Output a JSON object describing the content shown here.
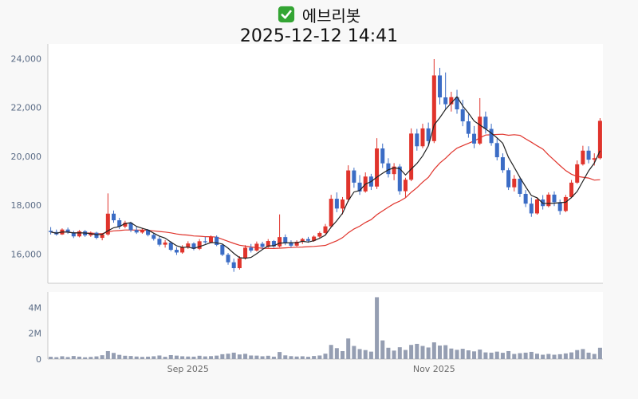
{
  "header": {
    "title": "에브리봇",
    "datetime": "2025-12-12 14:41"
  },
  "colors": {
    "up": "#e0342c",
    "down": "#3b6cc5",
    "ma_fast": "#222222",
    "ma_slow": "#e0342c",
    "volume_bar": "#959eb2",
    "axis_label": "#5a6b85",
    "axis_line": "#c9c9c9",
    "x_label": "#6b6b6b",
    "plot_bg": "#ffffff",
    "checkbox_green": "#34a534"
  },
  "chart_data": {
    "type": "candlestick+volume",
    "title": "에브리봇",
    "as_of": "2025-12-12 14:41",
    "price_axis": {
      "range": [
        14800,
        24600
      ],
      "ticks": [
        {
          "label": "24,000",
          "value": 24000
        },
        {
          "label": "22,000",
          "value": 22000
        },
        {
          "label": "20,000",
          "value": 20000
        },
        {
          "label": "18,000",
          "value": 18000
        },
        {
          "label": "16,000",
          "value": 16000
        }
      ]
    },
    "volume_axis": {
      "unit": "M",
      "range": [
        0,
        5.2
      ],
      "ticks": [
        {
          "label": "4M",
          "value": 4
        },
        {
          "label": "2M",
          "value": 2
        },
        {
          "label": "0",
          "value": 0
        }
      ]
    },
    "x_ticks": [
      {
        "date": "2025-09-01",
        "label": "Sep 2025"
      },
      {
        "date": "2025-11-03",
        "label": "Nov 2025"
      }
    ],
    "ma_fast_window": 5,
    "ma_slow_window": 20,
    "columns": [
      "date",
      "open",
      "high",
      "low",
      "close",
      "volume_m"
    ],
    "candles": [
      [
        "2025-07-28",
        16950,
        17100,
        16800,
        16900,
        0.18
      ],
      [
        "2025-07-29",
        16900,
        17000,
        16750,
        16800,
        0.15
      ],
      [
        "2025-07-30",
        16800,
        17050,
        16780,
        17000,
        0.22
      ],
      [
        "2025-07-31",
        17000,
        17080,
        16820,
        16880,
        0.16
      ],
      [
        "2025-08-01",
        16880,
        16950,
        16650,
        16720,
        0.24
      ],
      [
        "2025-08-04",
        16720,
        16980,
        16680,
        16930,
        0.19
      ],
      [
        "2025-08-05",
        16930,
        16980,
        16700,
        16760,
        0.14
      ],
      [
        "2025-08-06",
        16760,
        16920,
        16700,
        16870,
        0.17
      ],
      [
        "2025-08-07",
        16870,
        16910,
        16600,
        16660,
        0.21
      ],
      [
        "2025-08-08",
        16660,
        16850,
        16560,
        16800,
        0.3
      ],
      [
        "2025-08-11",
        16800,
        18480,
        16750,
        17650,
        0.62
      ],
      [
        "2025-08-12",
        17650,
        17780,
        17280,
        17380,
        0.48
      ],
      [
        "2025-08-13",
        17380,
        17480,
        17020,
        17120,
        0.33
      ],
      [
        "2025-08-14",
        17120,
        17360,
        17050,
        17280,
        0.26
      ],
      [
        "2025-08-18",
        17280,
        17320,
        16900,
        16980,
        0.24
      ],
      [
        "2025-08-19",
        16980,
        17120,
        16820,
        16880,
        0.2
      ],
      [
        "2025-08-20",
        16880,
        17060,
        16830,
        16990,
        0.17
      ],
      [
        "2025-08-21",
        16990,
        17020,
        16720,
        16780,
        0.19
      ],
      [
        "2025-08-22",
        16780,
        16870,
        16550,
        16620,
        0.22
      ],
      [
        "2025-08-25",
        16620,
        16720,
        16310,
        16380,
        0.28
      ],
      [
        "2025-08-26",
        16380,
        16570,
        16260,
        16470,
        0.18
      ],
      [
        "2025-08-27",
        16470,
        16520,
        16110,
        16170,
        0.31
      ],
      [
        "2025-08-28",
        16170,
        16280,
        15960,
        16060,
        0.27
      ],
      [
        "2025-08-29",
        16060,
        16360,
        16010,
        16270,
        0.22
      ],
      [
        "2025-09-01",
        16270,
        16520,
        16210,
        16430,
        0.2
      ],
      [
        "2025-09-02",
        16430,
        16480,
        16150,
        16210,
        0.19
      ],
      [
        "2025-09-03",
        16210,
        16610,
        16160,
        16520,
        0.26
      ],
      [
        "2025-09-04",
        16520,
        16700,
        16420,
        16480,
        0.21
      ],
      [
        "2025-09-05",
        16480,
        16760,
        16440,
        16700,
        0.23
      ],
      [
        "2025-09-08",
        16700,
        16760,
        16320,
        16370,
        0.27
      ],
      [
        "2025-09-09",
        16370,
        16420,
        15910,
        15970,
        0.38
      ],
      [
        "2025-09-10",
        15970,
        16040,
        15560,
        15660,
        0.42
      ],
      [
        "2025-09-11",
        15660,
        15810,
        15270,
        15420,
        0.5
      ],
      [
        "2025-09-12",
        15420,
        15910,
        15360,
        15820,
        0.36
      ],
      [
        "2025-09-15",
        15820,
        16360,
        15770,
        16260,
        0.41
      ],
      [
        "2025-09-16",
        16260,
        16410,
        16060,
        16140,
        0.28
      ],
      [
        "2025-09-17",
        16140,
        16510,
        16100,
        16420,
        0.27
      ],
      [
        "2025-09-18",
        16420,
        16500,
        16210,
        16290,
        0.22
      ],
      [
        "2025-09-19",
        16290,
        16610,
        16250,
        16530,
        0.26
      ],
      [
        "2025-09-22",
        16530,
        16570,
        16260,
        16310,
        0.19
      ],
      [
        "2025-09-23",
        16310,
        17620,
        16270,
        16690,
        0.55
      ],
      [
        "2025-09-24",
        16690,
        16800,
        16360,
        16450,
        0.29
      ],
      [
        "2025-09-25",
        16450,
        16560,
        16260,
        16340,
        0.23
      ],
      [
        "2025-09-26",
        16340,
        16560,
        16300,
        16500,
        0.2
      ],
      [
        "2025-09-29",
        16500,
        16660,
        16410,
        16610,
        0.22
      ],
      [
        "2025-09-30",
        16610,
        16700,
        16460,
        16540,
        0.18
      ],
      [
        "2025-10-01",
        16540,
        16760,
        16500,
        16710,
        0.24
      ],
      [
        "2025-10-02",
        16710,
        16920,
        16660,
        16860,
        0.28
      ],
      [
        "2025-10-06",
        16860,
        17230,
        16810,
        17130,
        0.42
      ],
      [
        "2025-10-07",
        17130,
        18420,
        17080,
        18260,
        1.1
      ],
      [
        "2025-10-08",
        18260,
        18520,
        17710,
        17860,
        0.85
      ],
      [
        "2025-10-10",
        17860,
        18330,
        17620,
        18230,
        0.62
      ],
      [
        "2025-10-13",
        18230,
        19630,
        18130,
        19420,
        1.6
      ],
      [
        "2025-10-14",
        19420,
        19530,
        18710,
        18920,
        1.02
      ],
      [
        "2025-10-15",
        18920,
        19230,
        18420,
        18560,
        0.78
      ],
      [
        "2025-10-16",
        18560,
        19340,
        18510,
        19170,
        0.7
      ],
      [
        "2025-10-17",
        19170,
        19280,
        18620,
        18760,
        0.58
      ],
      [
        "2025-10-20",
        18760,
        20740,
        18660,
        20320,
        4.8
      ],
      [
        "2025-10-21",
        20320,
        20520,
        19520,
        19710,
        1.45
      ],
      [
        "2025-10-22",
        19710,
        19920,
        19130,
        19270,
        0.88
      ],
      [
        "2025-10-23",
        19270,
        19720,
        19020,
        19580,
        0.66
      ],
      [
        "2025-10-24",
        19580,
        19680,
        18430,
        18570,
        0.92
      ],
      [
        "2025-10-27",
        18570,
        19120,
        18330,
        19040,
        0.71
      ],
      [
        "2025-10-28",
        19040,
        21140,
        18980,
        20930,
        1.1
      ],
      [
        "2025-10-29",
        20930,
        21120,
        20230,
        20410,
        1.18
      ],
      [
        "2025-10-30",
        20410,
        21330,
        20330,
        21140,
        1.02
      ],
      [
        "2025-10-31",
        21140,
        21380,
        20420,
        20620,
        0.9
      ],
      [
        "2025-11-03",
        20620,
        23980,
        20540,
        23310,
        1.3
      ],
      [
        "2025-11-04",
        23310,
        23620,
        22120,
        22410,
        1.05
      ],
      [
        "2025-11-05",
        22410,
        23430,
        21920,
        22130,
        1.08
      ],
      [
        "2025-11-06",
        22130,
        22640,
        21830,
        22420,
        0.82
      ],
      [
        "2025-11-07",
        22420,
        22720,
        21740,
        21920,
        0.72
      ],
      [
        "2025-11-10",
        21920,
        22310,
        21230,
        21430,
        0.8
      ],
      [
        "2025-11-11",
        21430,
        21720,
        20760,
        20920,
        0.68
      ],
      [
        "2025-11-12",
        20920,
        21240,
        20330,
        20520,
        0.6
      ],
      [
        "2025-11-13",
        20520,
        22380,
        20460,
        21620,
        0.74
      ],
      [
        "2025-11-14",
        21620,
        21830,
        20930,
        21120,
        0.52
      ],
      [
        "2025-11-17",
        21120,
        21330,
        20430,
        20540,
        0.5
      ],
      [
        "2025-11-18",
        20540,
        20730,
        19830,
        19960,
        0.58
      ],
      [
        "2025-11-19",
        19960,
        20120,
        19320,
        19430,
        0.49
      ],
      [
        "2025-11-20",
        19430,
        19520,
        18620,
        18730,
        0.62
      ],
      [
        "2025-11-21",
        18730,
        19230,
        18560,
        19080,
        0.4
      ],
      [
        "2025-11-24",
        19080,
        19160,
        18330,
        18460,
        0.46
      ],
      [
        "2025-11-25",
        18460,
        18620,
        17920,
        18060,
        0.5
      ],
      [
        "2025-11-26",
        18060,
        18310,
        17520,
        17660,
        0.56
      ],
      [
        "2025-11-27",
        17660,
        18320,
        17610,
        18230,
        0.42
      ],
      [
        "2025-11-28",
        18230,
        18410,
        17820,
        17960,
        0.34
      ],
      [
        "2025-12-01",
        17960,
        18520,
        17910,
        18430,
        0.4
      ],
      [
        "2025-12-02",
        18430,
        18560,
        17960,
        18120,
        0.34
      ],
      [
        "2025-12-03",
        18120,
        18230,
        17610,
        17760,
        0.38
      ],
      [
        "2025-12-04",
        17760,
        18420,
        17710,
        18330,
        0.44
      ],
      [
        "2025-12-05",
        18330,
        19030,
        18280,
        18920,
        0.52
      ],
      [
        "2025-12-08",
        18920,
        19830,
        18870,
        19670,
        0.7
      ],
      [
        "2025-12-09",
        19670,
        20430,
        19620,
        20230,
        0.78
      ],
      [
        "2025-12-10",
        20230,
        20410,
        19710,
        19860,
        0.5
      ],
      [
        "2025-12-11",
        19860,
        20120,
        19620,
        19920,
        0.4
      ],
      [
        "2025-12-12",
        19920,
        21560,
        19870,
        21450,
        0.88
      ]
    ]
  }
}
